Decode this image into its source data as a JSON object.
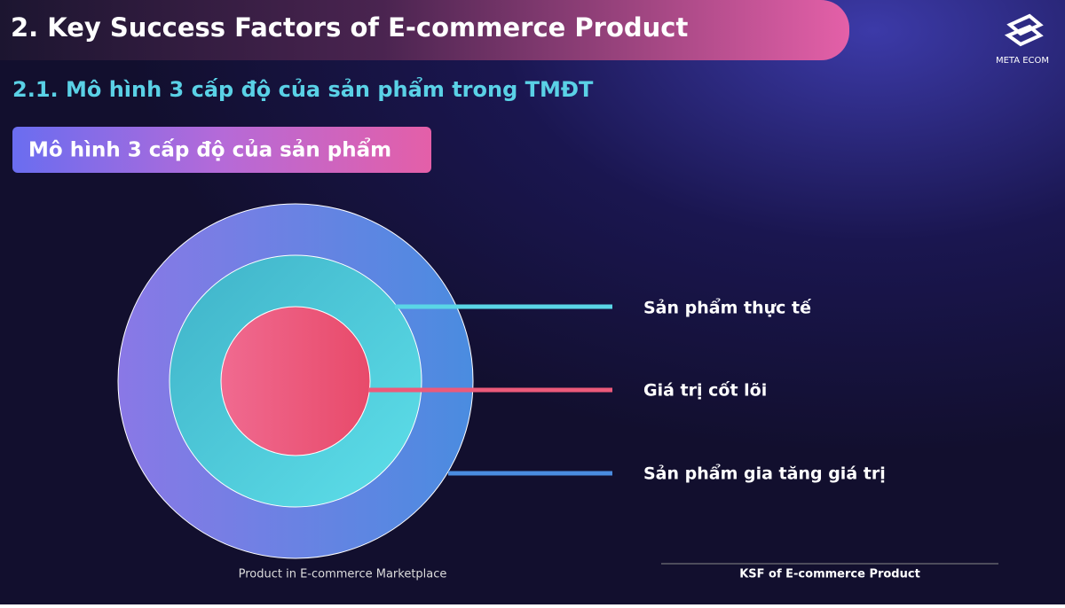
{
  "header": {
    "title": "2. Key Success Factors of E-commerce Product",
    "logo": "META ECOM"
  },
  "subtitle": "2.1. Mô hình 3 cấp độ của sản phẩm trong TMĐT",
  "badge": "Mô hình 3 cấp độ của sản phẩm",
  "diagram": {
    "labels": [
      "Sản phẩm thực tế",
      "Giá trị cốt lõi",
      "Sản phẩm gia tăng giá trị"
    ]
  },
  "footer": {
    "left": "Product in E-commerce Marketplace",
    "right": "KSF of E-commerce Product"
  }
}
